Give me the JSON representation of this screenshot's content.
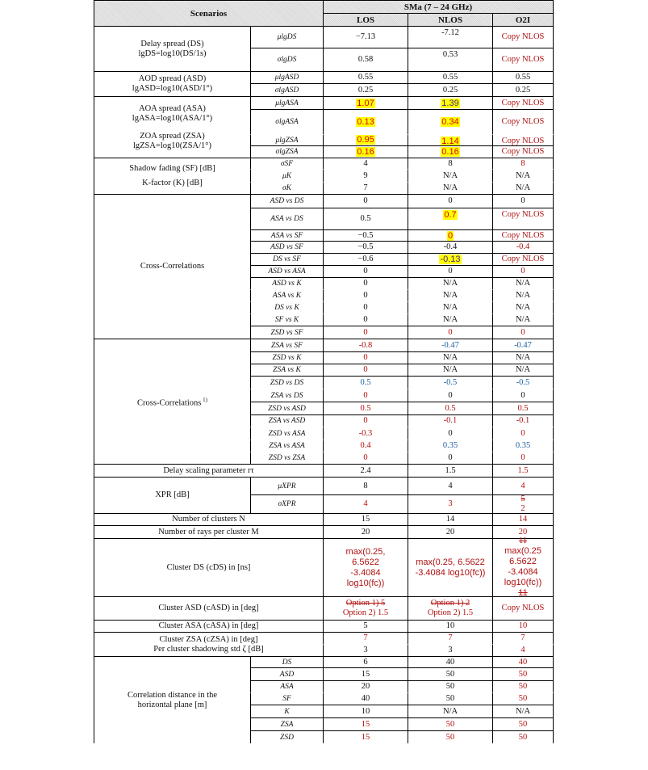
{
  "header": {
    "scenarios": "Scenarios",
    "group": "SMa (7 – 24 GHz)",
    "cols": [
      "LOS",
      "NLOS",
      "O2I"
    ]
  },
  "groups": {
    "ds": [
      "Delay spread (DS)",
      "lgDS=log10(DS/1s)"
    ],
    "asd": [
      "AOD spread (ASD)",
      "lgASD=log10(ASD/1°)"
    ],
    "asa": [
      "AOA spread (ASA)",
      "lgASA=log10(ASA/1°)"
    ],
    "zsa": [
      "ZOA spread (ZSA)",
      "lgZSA=log10(ZSA/1°)"
    ],
    "sf": "Shadow fading (SF) [dB]",
    "k": "K-factor (K) [dB]",
    "cc1": "Cross-Correlations",
    "cc2": "Cross-Correlations",
    "cc2_sup": "1)",
    "dsp": "Delay scaling parameter rτ",
    "xpr": "XPR [dB]",
    "nclusters": "Number of clusters N",
    "nrays": "Number of rays per cluster M",
    "cds": "Cluster DS (cDS) in [ns]",
    "casd": "Cluster ASD (cASD) in [deg]",
    "casa": "Cluster ASA (cASA) in [deg]",
    "czsa": "Cluster ZSA (cZSA) in [deg]",
    "pcs": "Per cluster shadowing std ζ [dB]",
    "corr": [
      "Correlation distance in the",
      "horizontal plane [m]"
    ]
  },
  "rows": [
    {
      "param": "μlgDS",
      "los": "−7.13",
      "nlos": "-7.12",
      "o2i": "Copy NLOS"
    },
    {
      "param": "σlgDS",
      "los": "0.58",
      "nlos": "0.53",
      "o2i": "Copy NLOS"
    },
    {
      "param": "μlgASD",
      "los": "0.55",
      "nlos": "0.55",
      "o2i": "0.55"
    },
    {
      "param": "σlgASD",
      "los": "0.25",
      "nlos": "0.25",
      "o2i": "0.25"
    },
    {
      "param": "μlgASA",
      "los": "1.07",
      "nlos": "1.39",
      "o2i": "Copy NLOS"
    },
    {
      "param": "σlgASA",
      "los": "0.13",
      "nlos": "0.34",
      "o2i": "Copy NLOS"
    },
    {
      "param": "μlgZSA",
      "los": "0.95",
      "nlos": "1.14",
      "o2i": "Copy NLOS"
    },
    {
      "param": "σlgZSA",
      "los": "0.16",
      "nlos": "0.16",
      "o2i": "Copy NLOS"
    },
    {
      "param": "σSF",
      "los": "4",
      "nlos": "8",
      "o2i": "8"
    },
    {
      "param": "μK",
      "los": "9",
      "nlos": "N/A",
      "o2i": "N/A"
    },
    {
      "param": "σK",
      "los": "7",
      "nlos": "N/A",
      "o2i": "N/A"
    },
    {
      "param": "ASD vs DS",
      "los": "0",
      "nlos": "0",
      "o2i": "0"
    },
    {
      "param": "ASA vs DS",
      "los": "0.5",
      "nlos": "0.7",
      "o2i": "Copy NLOS"
    },
    {
      "param": "ASA vs SF",
      "los": "−0.5",
      "nlos": "0",
      "o2i": "Copy NLOS"
    },
    {
      "param": "ASD vs SF",
      "los": "−0.5",
      "nlos": "-0.4",
      "o2i": "-0.4"
    },
    {
      "param": "DS vs SF",
      "los": "−0.6",
      "nlos": "-0.13",
      "o2i": "Copy NLOS"
    },
    {
      "param": "ASD vs ASA",
      "los": "0",
      "nlos": "0",
      "o2i": "0"
    },
    {
      "param": "ASD vs K",
      "los": "0",
      "nlos": "N/A",
      "o2i": "N/A"
    },
    {
      "param": "ASA vs K",
      "los": "0",
      "nlos": "N/A",
      "o2i": "N/A"
    },
    {
      "param": "DS vs K",
      "los": "0",
      "nlos": "N/A",
      "o2i": "N/A"
    },
    {
      "param": "SF vs K",
      "los": "0",
      "nlos": "N/A",
      "o2i": "N/A"
    },
    {
      "param": "ZSD vs SF",
      "los": "0",
      "nlos": "0",
      "o2i": "0"
    },
    {
      "param": "ZSA vs SF",
      "los": "-0.8",
      "nlos": "-0.47",
      "o2i": "-0.47"
    },
    {
      "param": "ZSD vs K",
      "los": "0",
      "nlos": "N/A",
      "o2i": "N/A"
    },
    {
      "param": "ZSA vs K",
      "los": "0",
      "nlos": "N/A",
      "o2i": "N/A"
    },
    {
      "param": "ZSD vs DS",
      "los": "0.5",
      "nlos": "-0.5",
      "o2i": "-0.5"
    },
    {
      "param": "ZSA vs DS",
      "los": "0",
      "nlos": "0",
      "o2i": "0"
    },
    {
      "param": "ZSD vs ASD",
      "los": "0.5",
      "nlos": "0.5",
      "o2i": "0.5"
    },
    {
      "param": "ZSA vs ASD",
      "los": "0",
      "nlos": "-0.1",
      "o2i": "-0.1"
    },
    {
      "param": "ZSD vs ASA",
      "los": "-0.3",
      "nlos": "0",
      "o2i": "0"
    },
    {
      "param": "ZSA vs ASA",
      "los": "0.4",
      "nlos": "0.35",
      "o2i": "0.35"
    },
    {
      "param": "ZSD vs ZSA",
      "los": "0",
      "nlos": "0",
      "o2i": "0"
    },
    {
      "param": "",
      "los": "2.4",
      "nlos": "1.5",
      "o2i": "1.5"
    },
    {
      "param": "μXPR",
      "los": "8",
      "nlos": "4",
      "o2i": "4"
    },
    {
      "param": "σXPR",
      "los": "4",
      "nlos": "3",
      "o2i_a": "5",
      "o2i_b": "2"
    },
    {
      "param": "",
      "los": "15",
      "nlos": "14",
      "o2i": "14"
    },
    {
      "param": "",
      "los": "20",
      "nlos": "20",
      "o2i": "20"
    },
    {
      "param": "",
      "los": [
        "max(0.25,",
        "6.5622",
        "-3.4084",
        "log10(fc))"
      ],
      "nlos": [
        "max(0.25, 6.5622",
        "-3.4084 log10(fc))"
      ],
      "o2i": [
        "max(0.25",
        "6.5622",
        "-3.4084",
        "log10(fc))"
      ],
      "o2i_strike": "11"
    },
    {
      "param": "",
      "los_strike": "Option 1) 5",
      "los": "Option 2) 1.5",
      "nlos_strike": "Option 1) 2",
      "nlos": "Option 2) 1.5",
      "o2i": "Copy NLOS"
    },
    {
      "param": "",
      "los": "5",
      "nlos": "10",
      "o2i": "10"
    },
    {
      "param": "",
      "los": "7",
      "nlos": "7",
      "o2i": "7"
    },
    {
      "param": "",
      "los": "3",
      "nlos": "3",
      "o2i": "4"
    },
    {
      "param": "DS",
      "los": "6",
      "nlos": "40",
      "o2i": "40"
    },
    {
      "param": "ASD",
      "los": "15",
      "nlos": "50",
      "o2i": "50"
    },
    {
      "param": "ASA",
      "los": "20",
      "nlos": "50",
      "o2i": "50"
    },
    {
      "param": "SF",
      "los": "40",
      "nlos": "50",
      "o2i": "50"
    },
    {
      "param": "K",
      "los": "10",
      "nlos": "N/A",
      "o2i": "N/A"
    },
    {
      "param": "ZSA",
      "los": "15",
      "nlos": "50",
      "o2i": "50"
    },
    {
      "param": "ZSD",
      "los": "15",
      "nlos": "50",
      "o2i": "50"
    }
  ],
  "colors": {
    "highlight": "#ffff00",
    "changed_red": "#b01010",
    "changed_blue": "#2060a0",
    "header_bg": "#d6d6d6"
  }
}
